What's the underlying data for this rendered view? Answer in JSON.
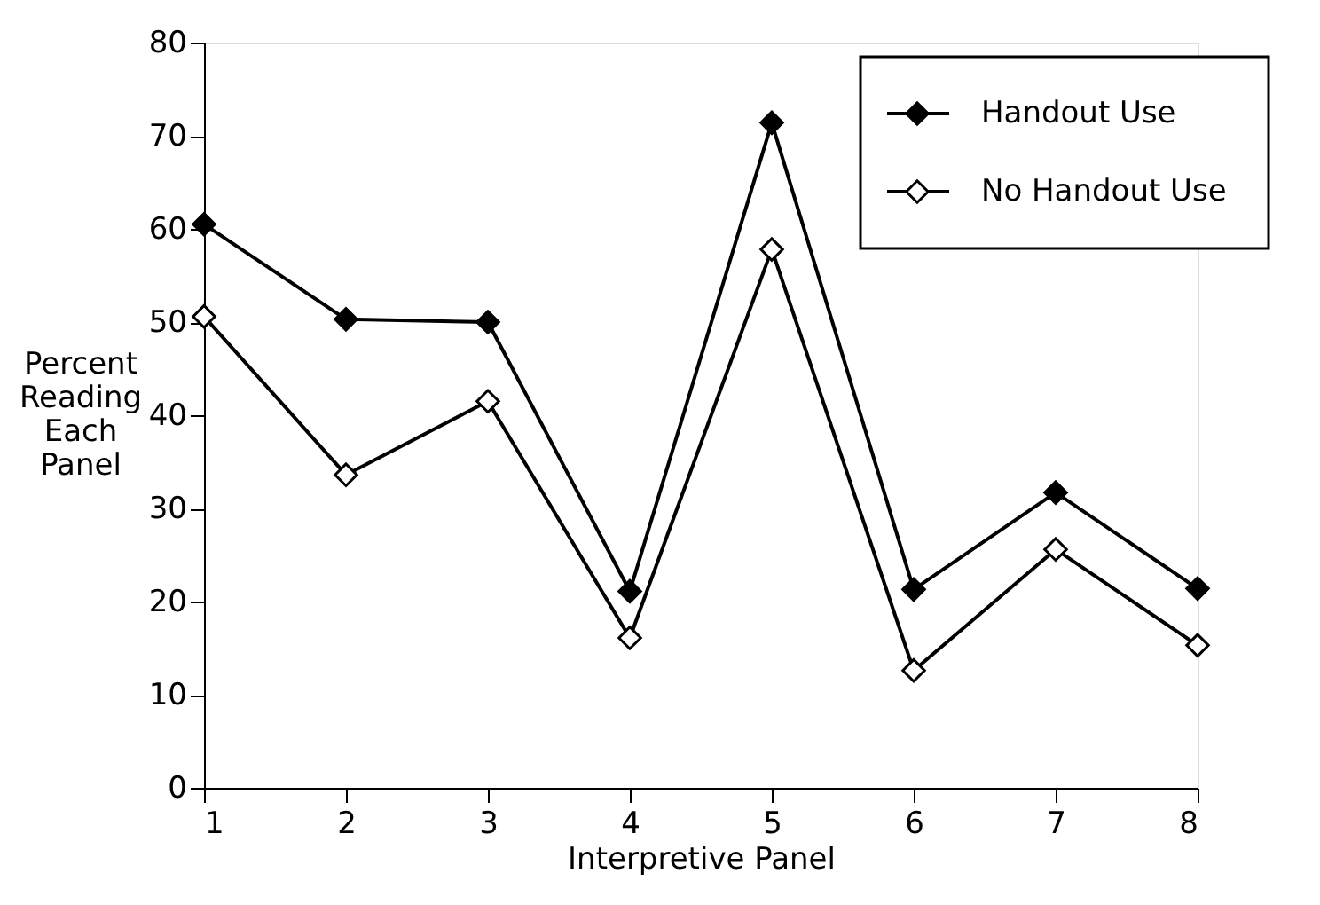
{
  "chart_data": {
    "type": "line",
    "xlabel": "Interpretive Panel",
    "ylabel": "Percent Reading Each Panel",
    "categories": [
      "1",
      "2",
      "3",
      "4",
      "5",
      "6",
      "7",
      "8"
    ],
    "series": [
      {
        "name": "Handout Use",
        "color": "#000000",
        "values": [
          60.5,
          50.3,
          50,
          21.1,
          71.4,
          21.3,
          31.7,
          21.4
        ]
      },
      {
        "name": "No Handout Use",
        "color": "#000000",
        "values": [
          50.6,
          33.6,
          41.5,
          16.1,
          57.8,
          12.6,
          25.6,
          15.3
        ]
      }
    ],
    "ylim": [
      0,
      80
    ],
    "yticks": [
      0,
      10,
      20,
      30,
      40,
      50,
      60,
      70,
      80
    ],
    "grid": false,
    "legend": "top right",
    "marker": "diamond",
    "line_style": "solid"
  }
}
